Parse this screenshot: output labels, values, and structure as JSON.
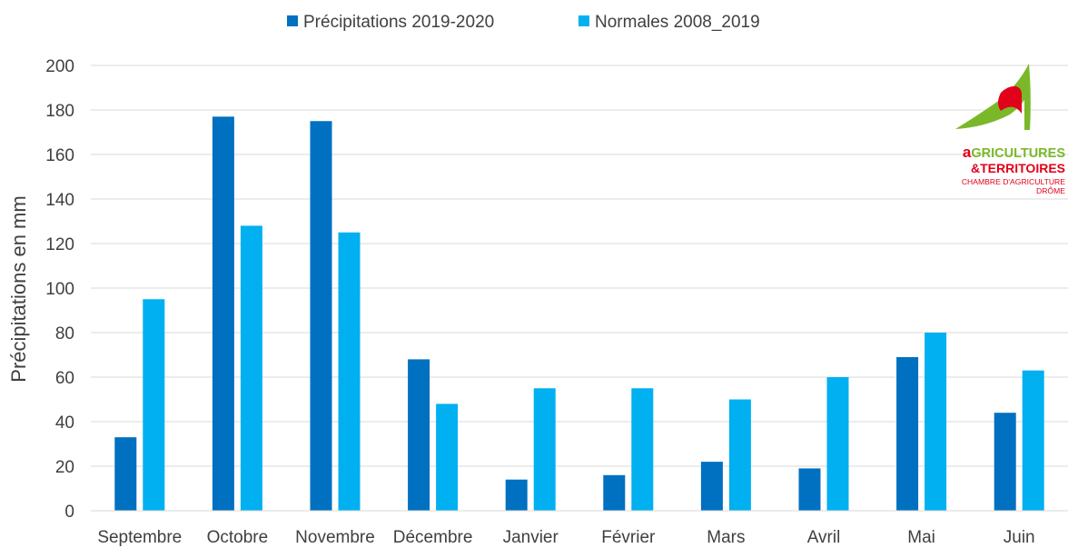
{
  "chart_data": {
    "type": "bar",
    "categories": [
      "Septembre",
      "Octobre",
      "Novembre",
      "Décembre",
      "Janvier",
      "Février",
      "Mars",
      "Avril",
      "Mai",
      "Juin"
    ],
    "series": [
      {
        "name": "Précipitations 2019-2020",
        "color": "#0070c0",
        "values": [
          33,
          177,
          175,
          68,
          14,
          16,
          22,
          19,
          69,
          44
        ]
      },
      {
        "name": "Normales 2008_2019",
        "color": "#00b0f0",
        "values": [
          95,
          128,
          125,
          48,
          55,
          55,
          50,
          60,
          80,
          63
        ]
      }
    ],
    "title": "",
    "xlabel": "",
    "ylabel": "Précipitations en mm",
    "ylim": [
      0,
      200
    ],
    "yticks": [
      "0",
      "20",
      "40",
      "60",
      "80",
      "100",
      "120",
      "140",
      "160",
      "180",
      "200"
    ],
    "grid": true,
    "legend_position": "top-center"
  },
  "logo": {
    "name": "logo-agricultures-territoires",
    "line1_initial": "a",
    "line1_rest": "GRICULTURES",
    "line2": "&TERRITOIRES",
    "line3": "CHAMBRE D'AGRICULTURE",
    "line4": "DRÔME",
    "green": "#7ab829",
    "red": "#e2001a"
  }
}
